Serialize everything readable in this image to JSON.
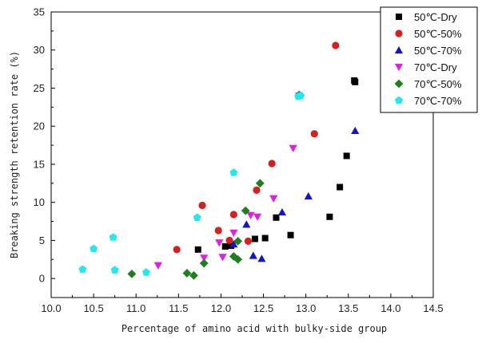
{
  "chart_data": {
    "type": "scatter",
    "xlabel": "Percentage of amino acid with bulky-side group",
    "ylabel": "Breaking strength retention rate (%)",
    "xlim": [
      10.0,
      14.5
    ],
    "ylim": [
      -2.5,
      35
    ],
    "x_ticks": [
      "10.0",
      "10.5",
      "11.0",
      "11.5",
      "12.0",
      "12.5",
      "13.0",
      "13.5",
      "14.0",
      "14.5"
    ],
    "y_ticks": [
      "0",
      "5",
      "10",
      "15",
      "20",
      "25",
      "30",
      "35"
    ],
    "grid": false,
    "legend_position": "top-right",
    "series": [
      {
        "name": "50℃-Dry",
        "marker": "square",
        "color": "#000000",
        "points": [
          [
            11.73,
            3.8
          ],
          [
            12.05,
            4.2
          ],
          [
            12.12,
            4.3
          ],
          [
            12.4,
            5.2
          ],
          [
            12.52,
            5.3
          ],
          [
            12.65,
            8.0
          ],
          [
            12.82,
            5.7
          ],
          [
            13.28,
            8.1
          ],
          [
            13.4,
            12.0
          ],
          [
            13.48,
            16.1
          ],
          [
            13.57,
            26.0
          ],
          [
            13.58,
            25.8
          ]
        ]
      },
      {
        "name": "50℃-50%",
        "marker": "circle",
        "color": "#d42020",
        "points": [
          [
            11.48,
            3.8
          ],
          [
            11.78,
            9.6
          ],
          [
            11.97,
            6.3
          ],
          [
            12.1,
            5.0
          ],
          [
            12.15,
            8.4
          ],
          [
            12.32,
            4.9
          ],
          [
            12.42,
            11.6
          ],
          [
            12.6,
            15.1
          ],
          [
            13.1,
            19.0
          ],
          [
            13.35,
            30.6
          ]
        ]
      },
      {
        "name": "50℃-70%",
        "marker": "triangle-up",
        "color": "#1515c8",
        "points": [
          [
            12.15,
            4.5
          ],
          [
            12.3,
            7.1
          ],
          [
            12.38,
            3.0
          ],
          [
            12.48,
            2.6
          ],
          [
            12.72,
            8.7
          ],
          [
            13.03,
            10.8
          ],
          [
            13.58,
            19.4
          ]
        ]
      },
      {
        "name": "70℃-Dry",
        "marker": "triangle-down",
        "color": "#e020e0",
        "points": [
          [
            11.26,
            1.7
          ],
          [
            11.8,
            2.7
          ],
          [
            11.98,
            4.7
          ],
          [
            12.02,
            2.8
          ],
          [
            12.15,
            6.0
          ],
          [
            12.35,
            8.3
          ],
          [
            12.43,
            8.1
          ],
          [
            12.62,
            10.5
          ],
          [
            12.85,
            17.1
          ],
          [
            12.92,
            24.0
          ]
        ]
      },
      {
        "name": "70℃-50%",
        "marker": "diamond",
        "color": "#1f7f1f",
        "points": [
          [
            10.95,
            0.6
          ],
          [
            11.6,
            0.7
          ],
          [
            11.68,
            0.4
          ],
          [
            11.8,
            2.0
          ],
          [
            12.15,
            2.9
          ],
          [
            12.2,
            4.9
          ],
          [
            12.2,
            2.5
          ],
          [
            12.29,
            8.9
          ],
          [
            12.46,
            12.5
          ],
          [
            12.92,
            24.1
          ]
        ]
      },
      {
        "name": "70℃-70%",
        "marker": "pentagon",
        "color": "#22e8f0",
        "points": [
          [
            10.37,
            1.2
          ],
          [
            10.5,
            3.9
          ],
          [
            10.73,
            5.4
          ],
          [
            10.75,
            1.1
          ],
          [
            11.12,
            0.8
          ],
          [
            11.72,
            8.0
          ],
          [
            12.15,
            13.9
          ],
          [
            12.91,
            23.9
          ],
          [
            12.94,
            24.0
          ]
        ]
      }
    ]
  }
}
